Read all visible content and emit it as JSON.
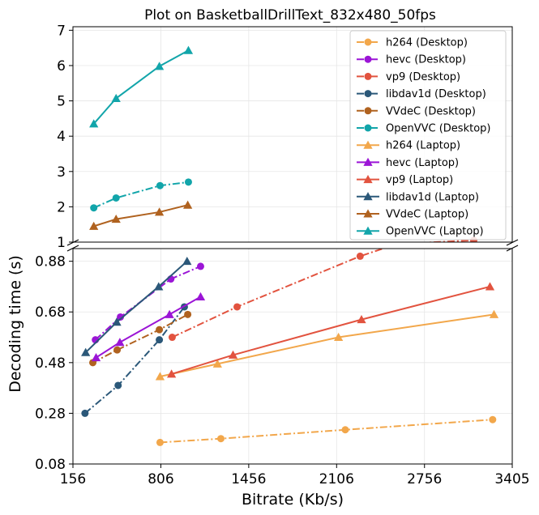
{
  "chart_data": {
    "type": "line",
    "title": "Plot on BasketballDrillText_832x480_50fps",
    "xlabel": "Bitrate (Kb/s)",
    "ylabel": "Decoding time (s)",
    "xlim": [
      156,
      3405
    ],
    "x_ticks": [
      "156",
      "806",
      "1456",
      "2106",
      "2756",
      "3405"
    ],
    "broken_y_axis": true,
    "upper_ylim": [
      1,
      7.1
    ],
    "upper_y_ticks": [
      "1",
      "2",
      "3",
      "4",
      "5",
      "6",
      "7"
    ],
    "lower_ylim": [
      0.08,
      0.93
    ],
    "lower_y_ticks": [
      "0.08",
      "0.28",
      "0.48",
      "0.68",
      "0.88"
    ],
    "grid": true,
    "legend_position": "upper-right",
    "series": [
      {
        "name": "h264 (Desktop)",
        "color": "#f2a74b",
        "dash": "dashdot",
        "marker": "circle",
        "x": [
          800,
          1250,
          2170,
          3260
        ],
        "y": [
          0.165,
          0.18,
          0.215,
          0.255
        ]
      },
      {
        "name": "hevc (Desktop)",
        "color": "#9b15d6",
        "dash": "dashdot",
        "marker": "circle",
        "x": [
          322,
          507,
          880,
          1100
        ],
        "y": [
          0.57,
          0.66,
          0.81,
          0.86
        ]
      },
      {
        "name": "vp9 (Desktop)",
        "color": "#e2533f",
        "dash": "dashdot",
        "marker": "circle",
        "x": [
          890,
          1370,
          2280,
          3120
        ],
        "y": [
          0.58,
          0.7,
          0.9,
          1.05
        ]
      },
      {
        "name": "libdav1d (Desktop)",
        "color": "#2b5879",
        "dash": "dashdot",
        "marker": "circle",
        "x": [
          245,
          490,
          795,
          980
        ],
        "y": [
          0.28,
          0.39,
          0.57,
          0.7
        ]
      },
      {
        "name": "VVdeC (Desktop)",
        "color": "#b0621f",
        "dash": "dashdot",
        "marker": "circle",
        "x": [
          303,
          483,
          795,
          1005
        ],
        "y": [
          0.48,
          0.53,
          0.61,
          0.67
        ]
      },
      {
        "name": "OpenVVC (Desktop)",
        "color": "#12a5aa",
        "dash": "dashdot",
        "marker": "circle",
        "x": [
          310,
          475,
          800,
          1010
        ],
        "y": [
          1.97,
          2.25,
          2.6,
          2.7
        ]
      },
      {
        "name": "h264 (Laptop)",
        "color": "#f2a74b",
        "dash": "solid",
        "marker": "triangle",
        "x": [
          800,
          1225,
          2120,
          3270
        ],
        "y": [
          0.425,
          0.475,
          0.58,
          0.67
        ]
      },
      {
        "name": "hevc (Laptop)",
        "color": "#9b15d6",
        "dash": "solid",
        "marker": "triangle",
        "x": [
          327,
          503,
          870,
          1100
        ],
        "y": [
          0.5,
          0.56,
          0.67,
          0.74
        ]
      },
      {
        "name": "vp9 (Laptop)",
        "color": "#e2533f",
        "dash": "solid",
        "marker": "triangle",
        "x": [
          885,
          1340,
          2290,
          3240
        ],
        "y": [
          0.435,
          0.51,
          0.65,
          0.78
        ]
      },
      {
        "name": "libdav1d (Laptop)",
        "color": "#2b5879",
        "dash": "solid",
        "marker": "triangle",
        "x": [
          250,
          480,
          790,
          1000
        ],
        "y": [
          0.52,
          0.64,
          0.78,
          0.88
        ]
      },
      {
        "name": "VVdeC (Laptop)",
        "color": "#b0621f",
        "dash": "solid",
        "marker": "triangle",
        "x": [
          310,
          475,
          795,
          1005
        ],
        "y": [
          1.45,
          1.65,
          1.85,
          2.05
        ]
      },
      {
        "name": "OpenVVC (Laptop)",
        "color": "#12a5aa",
        "dash": "solid",
        "marker": "triangle",
        "x": [
          310,
          475,
          795,
          1010
        ],
        "y": [
          4.35,
          5.07,
          5.98,
          6.43
        ]
      }
    ]
  }
}
